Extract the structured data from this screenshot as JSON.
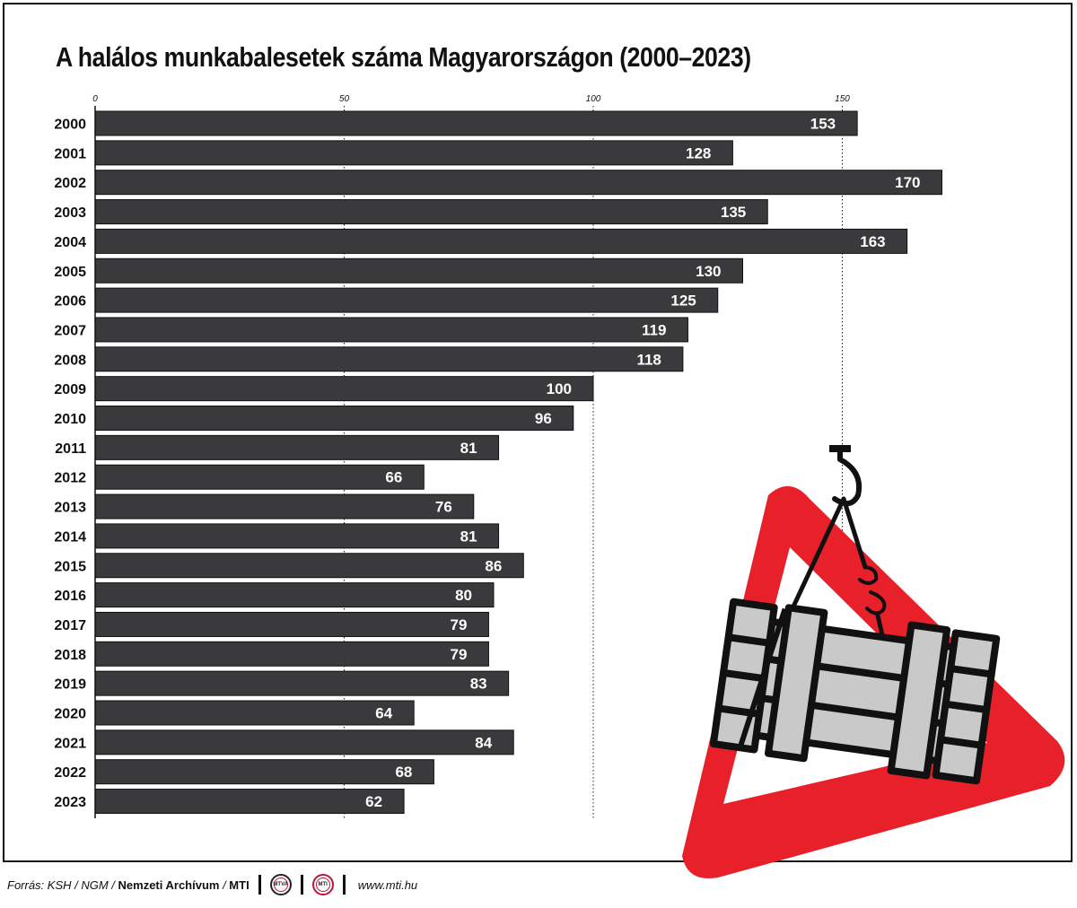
{
  "chart_data": {
    "type": "bar",
    "orientation": "horizontal",
    "title": "A halálos munkabalesetek száma Magyarországon (2000–2023)",
    "categories": [
      "2000",
      "2001",
      "2002",
      "2003",
      "2004",
      "2005",
      "2006",
      "2007",
      "2008",
      "2009",
      "2010",
      "2011",
      "2012",
      "2013",
      "2014",
      "2015",
      "2016",
      "2017",
      "2018",
      "2019",
      "2020",
      "2021",
      "2022",
      "2023"
    ],
    "values": [
      153,
      128,
      170,
      135,
      163,
      130,
      125,
      119,
      118,
      100,
      96,
      81,
      66,
      76,
      81,
      86,
      80,
      79,
      79,
      83,
      64,
      84,
      68,
      62
    ],
    "xlim": [
      0,
      175
    ],
    "ticks": [
      0,
      50,
      100,
      150
    ],
    "tick_labels": [
      "0",
      "50",
      "100",
      "150"
    ],
    "tick_position": "top",
    "grid": "vertical dotted",
    "bar_color": "#3a3a3c",
    "bar_label_color": "#ffffff"
  },
  "footer": {
    "source_prefix": "Forrás: KSH / NGM / ",
    "source_bold": "Nemzeti Archívum",
    "source_sep": " / ",
    "source_mti": "MTI",
    "logo1": "MTVA",
    "logo2": "MTI",
    "url": "www.mti.hu"
  },
  "illustration": {
    "icon": "warning-triangle-crane-load-icon",
    "triangle_color": "#e8202a",
    "load_color": "#c9c9c9"
  }
}
